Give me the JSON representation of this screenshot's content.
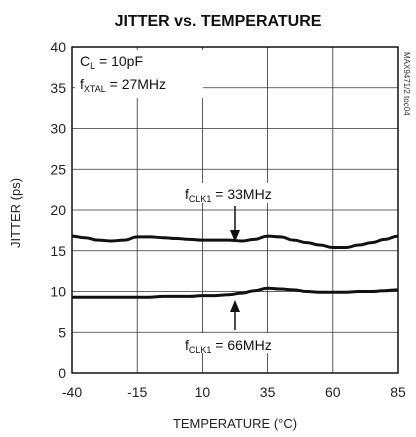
{
  "chart_data": {
    "type": "line",
    "title": "JITTER vs. TEMPERATURE",
    "xlabel": "TEMPERATURE (°C)",
    "ylabel": "JITTER (ps)",
    "xlim": [
      -40,
      85
    ],
    "ylim": [
      0,
      40
    ],
    "xticks": [
      -40,
      -15,
      10,
      35,
      60,
      85
    ],
    "yticks": [
      0,
      5,
      10,
      15,
      20,
      25,
      30,
      35,
      40
    ],
    "grid": true,
    "series": [
      {
        "name": "fCLK1 = 33MHz",
        "color": "#111111",
        "x": [
          -40,
          -35,
          -30,
          -25,
          -20,
          -15,
          -10,
          -5,
          0,
          5,
          10,
          15,
          20,
          25,
          30,
          35,
          40,
          45,
          50,
          55,
          60,
          65,
          70,
          75,
          80,
          85
        ],
        "y": [
          16.8,
          16.6,
          16.3,
          16.2,
          16.3,
          16.7,
          16.7,
          16.6,
          16.5,
          16.4,
          16.3,
          16.3,
          16.3,
          16.2,
          16.4,
          16.8,
          16.7,
          16.3,
          16.0,
          15.7,
          15.4,
          15.4,
          15.7,
          16.0,
          16.4,
          16.8
        ]
      },
      {
        "name": "fCLK1 = 66MHz",
        "color": "#111111",
        "x": [
          -40,
          -35,
          -30,
          -25,
          -20,
          -15,
          -10,
          -5,
          0,
          5,
          10,
          15,
          20,
          25,
          30,
          35,
          40,
          45,
          50,
          55,
          60,
          65,
          70,
          75,
          80,
          85
        ],
        "y": [
          9.3,
          9.3,
          9.3,
          9.3,
          9.3,
          9.3,
          9.3,
          9.4,
          9.4,
          9.4,
          9.5,
          9.5,
          9.6,
          9.8,
          10.1,
          10.4,
          10.3,
          10.2,
          10.0,
          9.9,
          9.9,
          9.9,
          10.0,
          10.0,
          10.1,
          10.2
        ]
      }
    ],
    "annotations": {
      "cl_prefix": "C",
      "cl_sub": "L",
      "cl_suffix": " = 10pF",
      "fxtal_prefix": "f",
      "fxtal_sub": "XTAL",
      "fxtal_suffix": " = 27MHz",
      "clk33_prefix": "f",
      "clk33_sub": "CLK1",
      "clk33_suffix": " = 33MHz",
      "clk66_prefix": "f",
      "clk66_sub": "CLK1",
      "clk66_suffix": " = 66MHz"
    },
    "side_code": "MAX9471/2 toc04"
  }
}
